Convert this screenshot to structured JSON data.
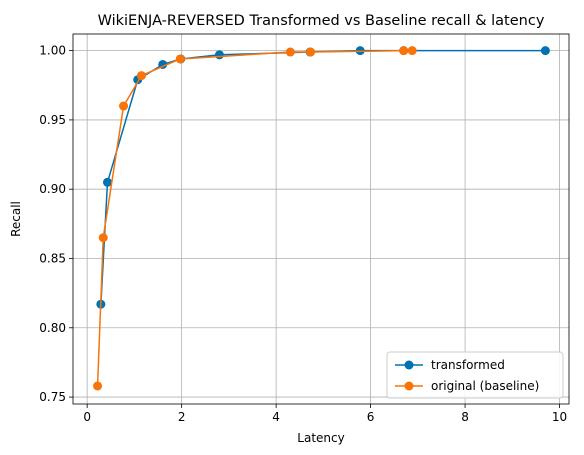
{
  "chart_data": {
    "type": "line",
    "title": "WikiENJA-REVERSED Transformed vs Baseline recall & latency",
    "xlabel": "Latency",
    "ylabel": "Recall",
    "xlim": [
      -0.3,
      10.2
    ],
    "ylim": [
      0.745,
      1.012
    ],
    "xticks": [
      0,
      2,
      4,
      6,
      8,
      10
    ],
    "yticks": [
      0.75,
      0.8,
      0.85,
      0.9,
      0.95,
      1.0
    ],
    "ytick_labels": [
      "0.75",
      "0.80",
      "0.85",
      "0.90",
      "0.95",
      "1.00"
    ],
    "grid": true,
    "legend_position": "bottom-right",
    "series": [
      {
        "name": "transformed",
        "color": "#0072B2",
        "marker": "circle",
        "x": [
          0.29,
          0.43,
          1.07,
          1.6,
          1.98,
          2.8,
          4.72,
          5.78,
          6.7,
          9.7
        ],
        "y": [
          0.817,
          0.905,
          0.979,
          0.99,
          0.994,
          0.997,
          0.999,
          1.0,
          1.0,
          1.0
        ]
      },
      {
        "name": "original (baseline)",
        "color": "#F97306",
        "marker": "circle",
        "x": [
          0.22,
          0.34,
          0.77,
          1.15,
          1.97,
          4.3,
          4.73,
          6.7,
          6.88
        ],
        "y": [
          0.758,
          0.865,
          0.96,
          0.982,
          0.994,
          0.999,
          0.999,
          1.0,
          1.0
        ]
      }
    ]
  }
}
